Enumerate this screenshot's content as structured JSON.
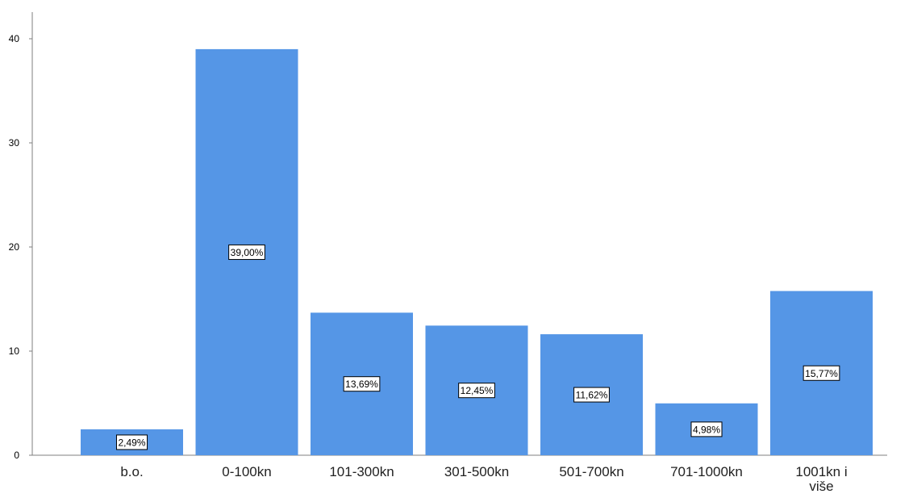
{
  "chart_data": {
    "type": "bar",
    "categories": [
      "b.o.",
      "0-100kn",
      "101-300kn",
      "301-500kn",
      "501-700kn",
      "701-1000kn",
      "1001kn i više"
    ],
    "category_lines": [
      [
        "b.o."
      ],
      [
        "0-100kn"
      ],
      [
        "101-300kn"
      ],
      [
        "301-500kn"
      ],
      [
        "501-700kn"
      ],
      [
        "701-1000kn"
      ],
      [
        "1001kn i",
        "više"
      ]
    ],
    "values": [
      2.49,
      39.0,
      13.69,
      12.45,
      11.62,
      4.98,
      15.77
    ],
    "data_labels": [
      "2,49%",
      "39,00%",
      "13,69%",
      "12,45%",
      "11,62%",
      "4,98%",
      "15,77%"
    ],
    "yticks": [
      0,
      10,
      20,
      30,
      40
    ],
    "ylim": [
      0,
      42
    ],
    "title": "",
    "xlabel": "",
    "ylabel": "",
    "grid": false,
    "bar_color": "#5596e6",
    "label_box_color": "#ffffff",
    "axis_color": "#7f7f7f"
  }
}
